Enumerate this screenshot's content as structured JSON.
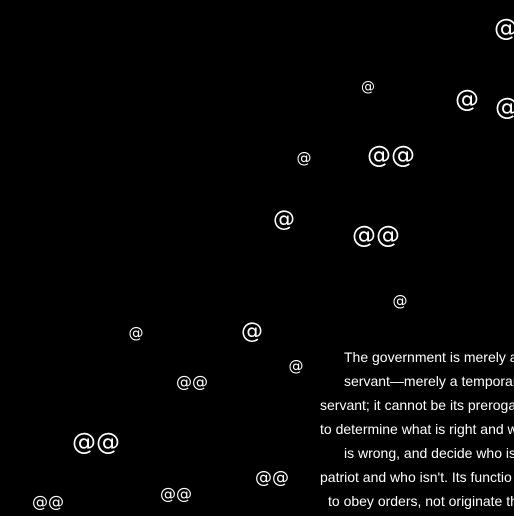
{
  "symbols": [
    "@",
    "@",
    "@",
    "@",
    "@",
    "@@",
    "@",
    "@@",
    "@",
    "@",
    "@",
    "@",
    "@@",
    "@@",
    "@@",
    "@@",
    "@@"
  ],
  "quote": {
    "lines": [
      "The government is merely a",
      "servant—merely a temporar",
      "servant; it cannot be its preroga",
      "to determine what is right and w",
      "is wrong, and decide who is",
      "patriot and who isn't. Its functio",
      "to obey orders, not originate th"
    ]
  }
}
